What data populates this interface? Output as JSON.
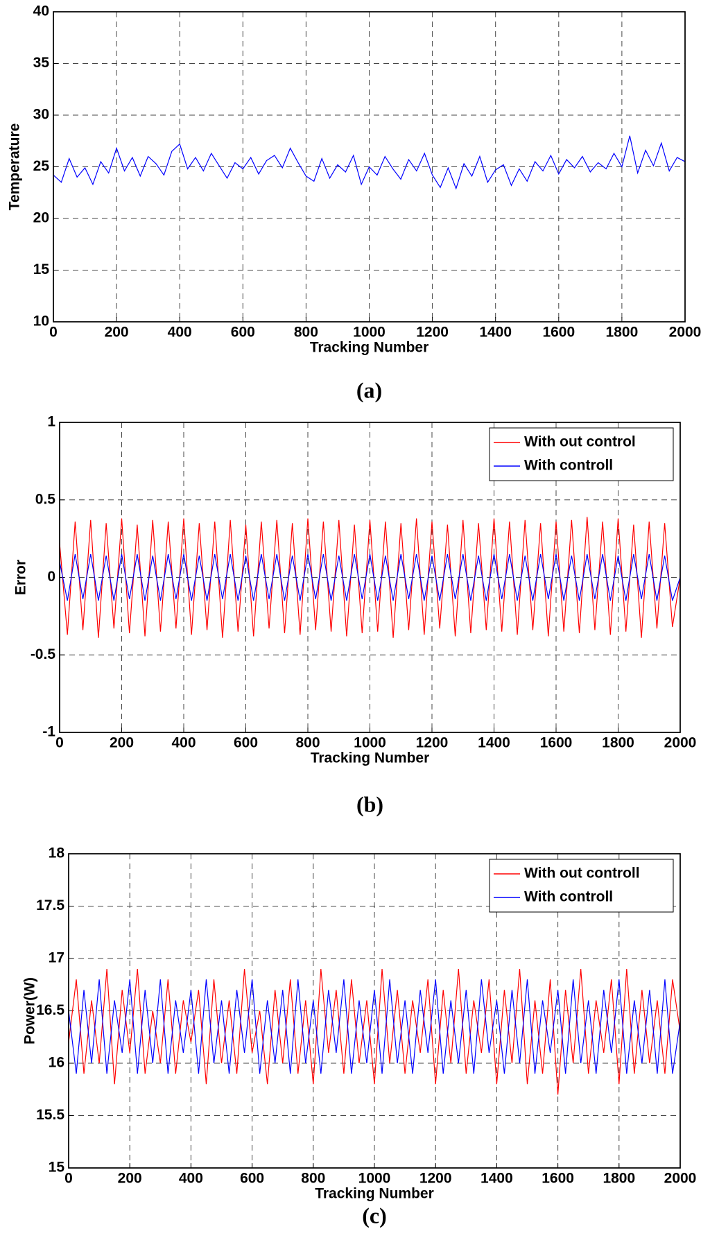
{
  "chart_data": [
    {
      "type": "line",
      "caption": "(a)",
      "xlabel": "Tracking Number",
      "ylabel": "Temperature",
      "grid": true,
      "xlim": [
        0,
        2000
      ],
      "xticks": [
        0,
        200,
        400,
        600,
        800,
        1000,
        1200,
        1400,
        1600,
        1800,
        2000
      ],
      "ylim": [
        10,
        40
      ],
      "yticks": [
        10,
        15,
        20,
        25,
        30,
        35,
        40
      ],
      "x": [
        0,
        25,
        50,
        75,
        100,
        125,
        150,
        175,
        200,
        225,
        250,
        275,
        300,
        325,
        350,
        375,
        400,
        425,
        450,
        475,
        500,
        525,
        550,
        575,
        600,
        625,
        650,
        675,
        700,
        725,
        750,
        775,
        800,
        825,
        850,
        875,
        900,
        925,
        950,
        975,
        1000,
        1025,
        1050,
        1075,
        1100,
        1125,
        1150,
        1175,
        1200,
        1225,
        1250,
        1275,
        1300,
        1325,
        1350,
        1375,
        1400,
        1425,
        1450,
        1475,
        1500,
        1525,
        1550,
        1575,
        1600,
        1625,
        1650,
        1675,
        1700,
        1725,
        1750,
        1775,
        1800,
        1825,
        1850,
        1875,
        1900,
        1925,
        1950,
        1975,
        2000
      ],
      "series": [
        {
          "color": "#0000ff",
          "values": [
            24.2,
            23.5,
            25.8,
            24.0,
            24.9,
            23.3,
            25.5,
            24.4,
            26.8,
            24.6,
            25.9,
            24.1,
            26.0,
            25.3,
            24.2,
            26.5,
            27.2,
            24.8,
            25.9,
            24.6,
            26.3,
            25.1,
            23.9,
            25.4,
            24.8,
            25.9,
            24.3,
            25.6,
            26.1,
            24.9,
            26.8,
            25.4,
            24.1,
            23.6,
            25.8,
            23.9,
            25.2,
            24.5,
            26.1,
            23.3,
            25.0,
            24.2,
            26.0,
            24.8,
            23.8,
            25.7,
            24.6,
            26.3,
            24.2,
            23.0,
            24.9,
            22.9,
            25.3,
            24.1,
            26.0,
            23.5,
            24.7,
            25.2,
            23.2,
            24.8,
            23.6,
            25.5,
            24.6,
            26.1,
            24.3,
            25.7,
            24.9,
            26.0,
            24.5,
            25.4,
            24.8,
            26.3,
            25.0,
            28.0,
            24.4,
            26.6,
            25.1,
            27.3,
            24.6,
            25.9,
            25.5
          ]
        }
      ]
    },
    {
      "type": "line",
      "caption": "(b)",
      "xlabel": "Tracking Number",
      "ylabel": "Error",
      "grid": true,
      "legend": "upper right",
      "xlim": [
        0,
        2000
      ],
      "xticks": [
        0,
        200,
        400,
        600,
        800,
        1000,
        1200,
        1400,
        1600,
        1800,
        2000
      ],
      "ylim": [
        -1,
        1
      ],
      "yticks": [
        -1,
        -0.5,
        0,
        0.5,
        1
      ],
      "x": [
        0,
        25,
        50,
        75,
        100,
        125,
        150,
        175,
        200,
        225,
        250,
        275,
        300,
        325,
        350,
        375,
        400,
        425,
        450,
        475,
        500,
        525,
        550,
        575,
        600,
        625,
        650,
        675,
        700,
        725,
        750,
        775,
        800,
        825,
        850,
        875,
        900,
        925,
        950,
        975,
        1000,
        1025,
        1050,
        1075,
        1100,
        1125,
        1150,
        1175,
        1200,
        1225,
        1250,
        1275,
        1300,
        1325,
        1350,
        1375,
        1400,
        1425,
        1450,
        1475,
        1500,
        1525,
        1550,
        1575,
        1600,
        1625,
        1650,
        1675,
        1700,
        1725,
        1750,
        1775,
        1800,
        1825,
        1850,
        1875,
        1900,
        1925,
        1950,
        1975,
        2000
      ],
      "series": [
        {
          "name": "With out control",
          "color": "#ff0000",
          "values": [
            0.22,
            -0.37,
            0.36,
            -0.34,
            0.37,
            -0.39,
            0.35,
            -0.33,
            0.38,
            -0.36,
            0.34,
            -0.38,
            0.37,
            -0.35,
            0.36,
            -0.33,
            0.38,
            -0.37,
            0.35,
            -0.34,
            0.36,
            -0.39,
            0.37,
            -0.35,
            0.34,
            -0.38,
            0.36,
            -0.33,
            0.37,
            -0.36,
            0.35,
            -0.37,
            0.38,
            -0.34,
            0.36,
            -0.35,
            0.37,
            -0.38,
            0.34,
            -0.36,
            0.37,
            -0.35,
            0.36,
            -0.39,
            0.35,
            -0.34,
            0.38,
            -0.37,
            0.36,
            -0.33,
            0.34,
            -0.38,
            0.37,
            -0.36,
            0.35,
            -0.34,
            0.38,
            -0.35,
            0.36,
            -0.37,
            0.37,
            -0.34,
            0.35,
            -0.38,
            0.36,
            -0.35,
            0.37,
            -0.36,
            0.39,
            -0.34,
            0.36,
            -0.37,
            0.38,
            -0.35,
            0.34,
            -0.39,
            0.36,
            -0.33,
            0.35,
            -0.32,
            0.0
          ]
        },
        {
          "name": "With controll",
          "color": "#0000ff",
          "values": [
            0.1,
            -0.15,
            0.15,
            -0.14,
            0.15,
            -0.15,
            0.14,
            -0.15,
            0.15,
            -0.14,
            0.15,
            -0.15,
            0.14,
            -0.15,
            0.15,
            -0.14,
            0.15,
            -0.15,
            0.14,
            -0.15,
            0.15,
            -0.14,
            0.15,
            -0.15,
            0.14,
            -0.15,
            0.15,
            -0.14,
            0.15,
            -0.15,
            0.14,
            -0.15,
            0.15,
            -0.14,
            0.15,
            -0.15,
            0.14,
            -0.15,
            0.15,
            -0.14,
            0.15,
            -0.15,
            0.14,
            -0.15,
            0.15,
            -0.14,
            0.15,
            -0.15,
            0.14,
            -0.15,
            0.15,
            -0.14,
            0.15,
            -0.15,
            0.14,
            -0.15,
            0.15,
            -0.14,
            0.15,
            -0.15,
            0.14,
            -0.15,
            0.15,
            -0.14,
            0.15,
            -0.15,
            0.14,
            -0.15,
            0.15,
            -0.14,
            0.15,
            -0.15,
            0.14,
            -0.15,
            0.15,
            -0.14,
            0.15,
            -0.15,
            0.14,
            -0.15,
            0.0
          ]
        }
      ]
    },
    {
      "type": "line",
      "caption": "(c)",
      "xlabel": "Tracking Number",
      "ylabel": "Power(W)",
      "grid": true,
      "legend": "upper right",
      "xlim": [
        0,
        2000
      ],
      "xticks": [
        0,
        200,
        400,
        600,
        800,
        1000,
        1200,
        1400,
        1600,
        1800,
        2000
      ],
      "ylim": [
        15,
        18
      ],
      "yticks": [
        15,
        15.5,
        16,
        16.5,
        17,
        17.5,
        18
      ],
      "x": [
        0,
        25,
        50,
        75,
        100,
        125,
        150,
        175,
        200,
        225,
        250,
        275,
        300,
        325,
        350,
        375,
        400,
        425,
        450,
        475,
        500,
        525,
        550,
        575,
        600,
        625,
        650,
        675,
        700,
        725,
        750,
        775,
        800,
        825,
        850,
        875,
        900,
        925,
        950,
        975,
        1000,
        1025,
        1050,
        1075,
        1100,
        1125,
        1150,
        1175,
        1200,
        1225,
        1250,
        1275,
        1300,
        1325,
        1350,
        1375,
        1400,
        1425,
        1450,
        1475,
        1500,
        1525,
        1550,
        1575,
        1600,
        1625,
        1650,
        1675,
        1700,
        1725,
        1750,
        1775,
        1800,
        1825,
        1850,
        1875,
        1900,
        1925,
        1950,
        1975,
        2000
      ],
      "series": [
        {
          "name": "With out controll",
          "color": "#ff0000",
          "values": [
            16.2,
            16.8,
            15.9,
            16.6,
            16.0,
            16.9,
            15.8,
            16.7,
            16.1,
            16.9,
            15.9,
            16.5,
            16.0,
            16.8,
            15.9,
            16.6,
            16.2,
            16.7,
            15.8,
            16.8,
            16.0,
            16.6,
            15.9,
            16.9,
            16.1,
            16.5,
            15.8,
            16.7,
            16.0,
            16.8,
            15.9,
            16.6,
            15.8,
            16.9,
            16.1,
            16.7,
            15.9,
            16.8,
            16.0,
            16.6,
            15.8,
            16.9,
            16.0,
            16.7,
            15.9,
            16.6,
            16.1,
            16.8,
            15.8,
            16.7,
            16.0,
            16.9,
            15.9,
            16.6,
            16.1,
            16.8,
            15.8,
            16.7,
            16.0,
            16.9,
            15.8,
            16.6,
            15.9,
            16.8,
            15.7,
            16.7,
            16.0,
            16.9,
            15.9,
            16.6,
            16.1,
            16.8,
            15.8,
            16.9,
            15.9,
            16.7,
            16.0,
            16.6,
            15.9,
            16.8,
            16.3
          ]
        },
        {
          "name": "With controll",
          "color": "#0000ff",
          "values": [
            16.5,
            15.9,
            16.7,
            16.0,
            16.8,
            15.9,
            16.6,
            16.1,
            16.8,
            15.9,
            16.7,
            16.0,
            16.8,
            15.9,
            16.6,
            16.1,
            16.7,
            15.9,
            16.8,
            16.0,
            16.6,
            15.9,
            16.7,
            16.1,
            16.8,
            15.9,
            16.6,
            16.0,
            16.7,
            15.9,
            16.8,
            16.0,
            16.6,
            15.9,
            16.7,
            16.1,
            16.8,
            15.9,
            16.6,
            16.0,
            16.7,
            15.9,
            16.8,
            16.0,
            16.6,
            15.9,
            16.7,
            16.1,
            16.8,
            15.9,
            16.6,
            16.0,
            16.7,
            15.9,
            16.8,
            16.1,
            16.6,
            15.9,
            16.7,
            16.0,
            16.8,
            15.9,
            16.6,
            16.1,
            16.7,
            15.9,
            16.8,
            16.0,
            16.6,
            15.9,
            16.7,
            16.1,
            16.8,
            15.9,
            16.6,
            16.0,
            16.7,
            15.9,
            16.8,
            15.9,
            16.4
          ]
        }
      ]
    }
  ]
}
